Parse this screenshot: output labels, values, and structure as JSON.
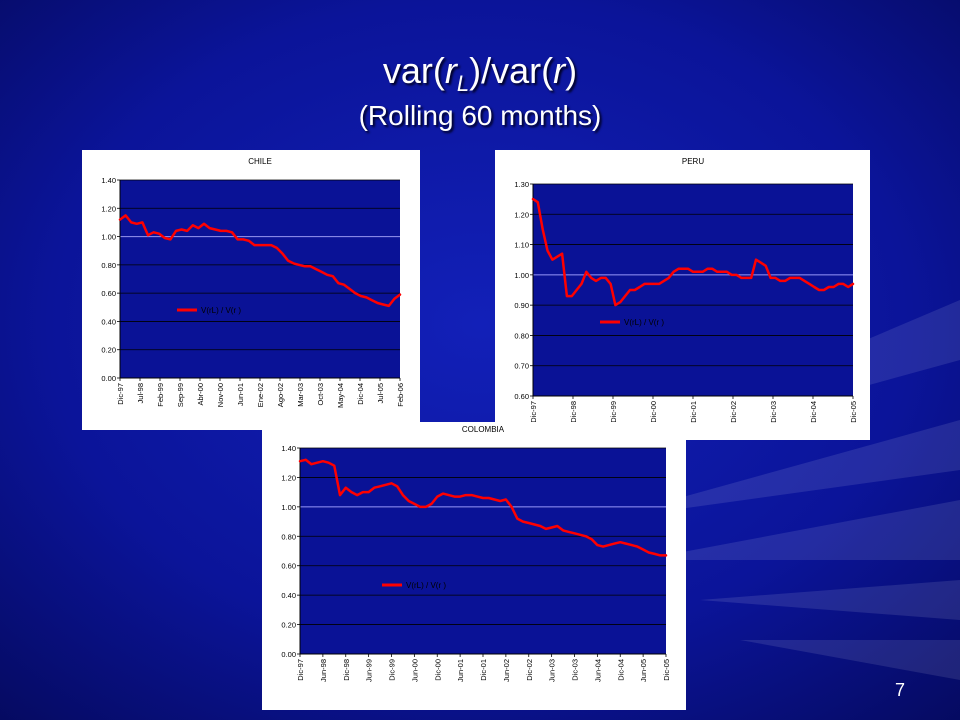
{
  "slide": {
    "title_prefix": "var(",
    "title_var1": "r",
    "title_sub": "L",
    "title_mid": ")/var(",
    "title_var2": "r",
    "title_suffix": ")",
    "subtitle": "(Rolling 60 months)",
    "slide_number": "7"
  },
  "colors": {
    "background": "#0a1296",
    "plot_area": "#0a1296",
    "series": "#ff0000",
    "gridline": "#000000",
    "reference_line": "#9999ff",
    "text": "#000000"
  },
  "chart_data": [
    {
      "type": "line",
      "title": "CHILE",
      "ylim": [
        0,
        1.4
      ],
      "yticks": [
        "0.00",
        "0.20",
        "0.40",
        "0.60",
        "0.80",
        "1.00",
        "1.20",
        "1.40"
      ],
      "reference_y": 1.0,
      "legend_position": "left-middle",
      "grid": true,
      "xtick_labels": [
        "Dic-97",
        "Jul-98",
        "Feb-99",
        "Sep-99",
        "Abr-00",
        "Nov-00",
        "Jun-01",
        "Ene-02",
        "Ago-02",
        "Mar-03",
        "Oct-03",
        "May-04",
        "Dic-04",
        "Jul-05",
        "Feb-06"
      ],
      "series": [
        {
          "name": "V(rL) / V(r )",
          "values": [
            1.12,
            1.15,
            1.1,
            1.09,
            1.1,
            1.01,
            1.03,
            1.02,
            0.99,
            0.98,
            1.04,
            1.05,
            1.04,
            1.08,
            1.06,
            1.09,
            1.06,
            1.05,
            1.04,
            1.04,
            1.03,
            0.98,
            0.98,
            0.97,
            0.94,
            0.94,
            0.94,
            0.94,
            0.92,
            0.88,
            0.83,
            0.81,
            0.8,
            0.79,
            0.79,
            0.77,
            0.75,
            0.73,
            0.72,
            0.67,
            0.66,
            0.63,
            0.6,
            0.58,
            0.57,
            0.55,
            0.53,
            0.52,
            0.51,
            0.56,
            0.59
          ]
        }
      ]
    },
    {
      "type": "line",
      "title": "PERU",
      "ylim": [
        0.6,
        1.3
      ],
      "yticks": [
        "0.60",
        "0.70",
        "0.80",
        "0.90",
        "1.00",
        "1.10",
        "1.20",
        "1.30"
      ],
      "reference_y": 1.0,
      "legend_position": "left-middle",
      "grid": true,
      "xtick_labels": [
        "Dic-97",
        "Dic-98",
        "Dic-99",
        "Dic-00",
        "Dic-01",
        "Dic-02",
        "Dic-03",
        "Dic-04",
        "Dic-05"
      ],
      "series": [
        {
          "name": "V(rL) / V(r )",
          "values": [
            1.25,
            1.24,
            1.15,
            1.08,
            1.05,
            1.06,
            1.07,
            0.93,
            0.93,
            0.95,
            0.97,
            1.01,
            0.99,
            0.98,
            0.99,
            0.99,
            0.97,
            0.9,
            0.91,
            0.93,
            0.95,
            0.95,
            0.96,
            0.97,
            0.97,
            0.97,
            0.97,
            0.98,
            0.99,
            1.01,
            1.02,
            1.02,
            1.02,
            1.01,
            1.01,
            1.01,
            1.02,
            1.02,
            1.01,
            1.01,
            1.01,
            1.0,
            1.0,
            0.99,
            0.99,
            0.99,
            1.05,
            1.04,
            1.03,
            0.99,
            0.99,
            0.98,
            0.98,
            0.99,
            0.99,
            0.99,
            0.98,
            0.97,
            0.96,
            0.95,
            0.95,
            0.96,
            0.96,
            0.97,
            0.97,
            0.96,
            0.97
          ]
        }
      ]
    },
    {
      "type": "line",
      "title": "COLOMBIA",
      "ylim": [
        0,
        1.4
      ],
      "yticks": [
        "0.00",
        "0.20",
        "0.40",
        "0.60",
        "0.80",
        "1.00",
        "1.20",
        "1.40"
      ],
      "reference_y": 1.0,
      "legend_position": "left-middle",
      "grid": true,
      "xtick_labels": [
        "Dic-97",
        "Jun-98",
        "Dic-98",
        "Jun-99",
        "Dic-99",
        "Jun-00",
        "Dic-00",
        "Jun-01",
        "Dic-01",
        "Jun-02",
        "Dic-02",
        "Jun-03",
        "Dic-03",
        "Jun-04",
        "Dic-04",
        "Jun-05",
        "Dic-05"
      ],
      "series": [
        {
          "name": "V(rL) / V(r )",
          "values": [
            1.31,
            1.32,
            1.29,
            1.3,
            1.31,
            1.3,
            1.28,
            1.08,
            1.13,
            1.1,
            1.08,
            1.1,
            1.1,
            1.13,
            1.14,
            1.15,
            1.16,
            1.14,
            1.08,
            1.04,
            1.02,
            1.0,
            1.0,
            1.02,
            1.07,
            1.09,
            1.08,
            1.07,
            1.07,
            1.08,
            1.08,
            1.07,
            1.06,
            1.06,
            1.05,
            1.04,
            1.05,
            1.0,
            0.92,
            0.9,
            0.89,
            0.88,
            0.87,
            0.85,
            0.86,
            0.87,
            0.84,
            0.83,
            0.82,
            0.81,
            0.8,
            0.78,
            0.74,
            0.73,
            0.74,
            0.75,
            0.76,
            0.75,
            0.74,
            0.73,
            0.71,
            0.69,
            0.68,
            0.67,
            0.67
          ]
        }
      ]
    }
  ]
}
